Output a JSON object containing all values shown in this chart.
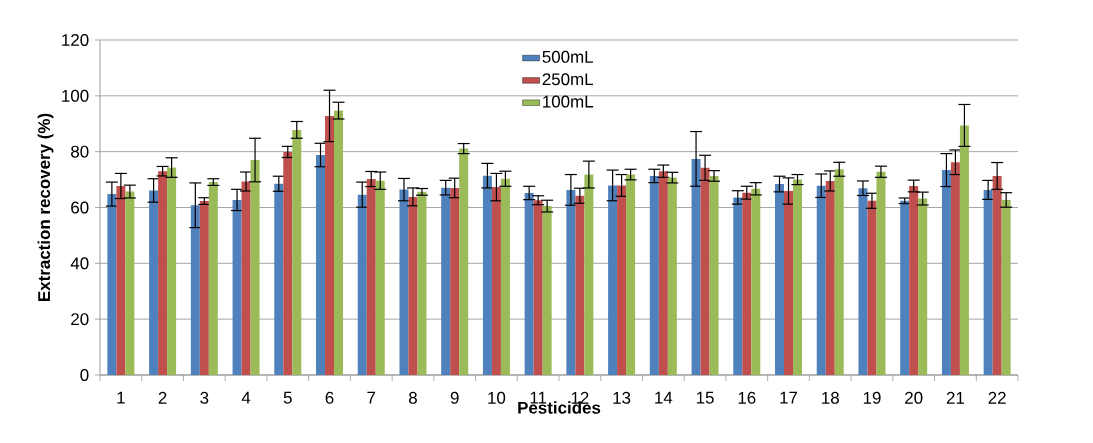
{
  "chart_data": {
    "type": "bar",
    "xlabel": "Pesticides",
    "ylabel": "Extraction recovery (%)",
    "categories": [
      "1",
      "2",
      "3",
      "4",
      "5",
      "6",
      "7",
      "8",
      "9",
      "10",
      "11",
      "12",
      "13",
      "14",
      "15",
      "16",
      "17",
      "18",
      "19",
      "20",
      "21",
      "22"
    ],
    "series": [
      {
        "name": "500mL",
        "color": "#4f81bd",
        "values": [
          64.8,
          66.1,
          60.8,
          62.7,
          68.5,
          78.8,
          64.6,
          66.4,
          67.1,
          71.4,
          65.2,
          66.3,
          67.9,
          71.3,
          77.4,
          63.6,
          68.4,
          67.8,
          66.9,
          62.4,
          73.4,
          66.3
        ],
        "errors": [
          4.3,
          4.2,
          8.0,
          3.8,
          2.7,
          4.2,
          4.5,
          4.0,
          2.6,
          4.4,
          2.4,
          5.5,
          5.5,
          2.4,
          9.8,
          2.4,
          2.8,
          4.2,
          2.6,
          1.0,
          5.9,
          3.4
        ]
      },
      {
        "name": "250mL",
        "color": "#c0504d",
        "values": [
          67.7,
          73.0,
          62.3,
          69.3,
          79.9,
          92.8,
          70.2,
          63.8,
          67.0,
          67.3,
          62.6,
          64.2,
          67.9,
          73.0,
          74.2,
          65.3,
          65.9,
          69.5,
          62.4,
          67.7,
          76.2,
          71.3
        ],
        "errors": [
          4.5,
          1.7,
          1.2,
          3.4,
          2.0,
          9.2,
          2.7,
          3.2,
          3.5,
          4.9,
          1.6,
          2.7,
          3.9,
          2.2,
          4.5,
          2.3,
          4.7,
          3.6,
          2.7,
          2.1,
          4.4,
          4.8
        ]
      },
      {
        "name": "100mL",
        "color": "#9bbb59",
        "values": [
          65.7,
          74.3,
          69.1,
          77.0,
          87.8,
          94.7,
          69.6,
          65.6,
          81.1,
          70.3,
          60.5,
          71.8,
          71.8,
          70.7,
          71.3,
          66.7,
          70.0,
          73.7,
          72.8,
          63.2,
          89.4,
          62.7
        ],
        "errors": [
          2.3,
          3.5,
          1.2,
          7.8,
          3.0,
          3.0,
          3.1,
          1.2,
          1.8,
          2.7,
          2.1,
          4.8,
          1.9,
          1.9,
          1.9,
          2.2,
          1.8,
          2.5,
          2.0,
          2.3,
          7.5,
          2.6
        ]
      }
    ],
    "ylim": [
      0,
      120
    ],
    "yticks": [
      0,
      20,
      40,
      60,
      80,
      100,
      120
    ],
    "grid": "y",
    "legend": "top"
  }
}
